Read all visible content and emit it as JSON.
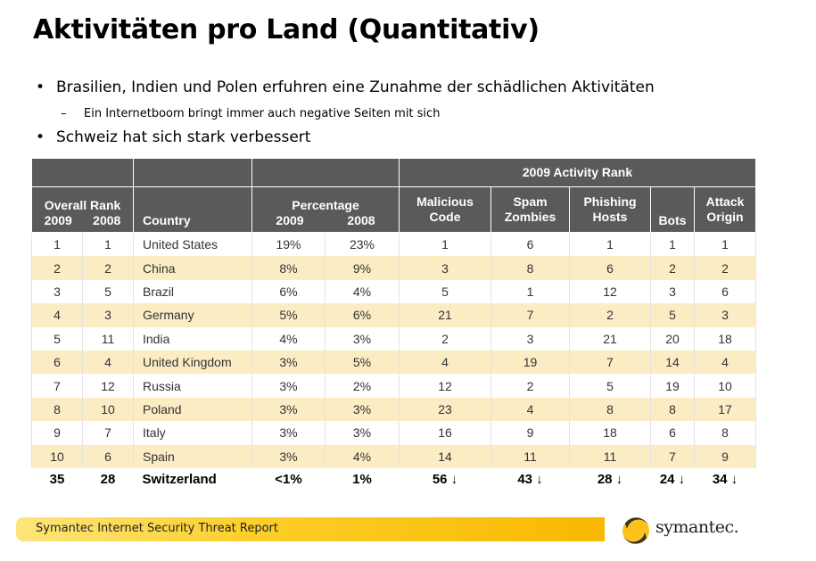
{
  "title": "Aktivitäten pro Land (Quantitativ)",
  "bullets": [
    {
      "marker": "•",
      "text": "Brasilien, Indien und Polen erfuhren eine Zunahme der schädlichen Aktivitäten"
    },
    {
      "marker": "–",
      "text": "Ein Internetboom bringt immer auch negative Seiten mit sich"
    },
    {
      "marker": "•",
      "text": "Schweiz hat sich stark verbessert"
    }
  ],
  "table": {
    "group_header": "2009 Activity Rank",
    "header": {
      "overall_rank": "Overall Rank",
      "y2009": "2009",
      "y2008": "2008",
      "country": "Country",
      "percentage": "Percentage",
      "p2009": "2009",
      "p2008": "2008",
      "malicious_code": "Malicious Code",
      "spam_zombies": "Spam Zombies",
      "phishing_hosts": "Phishing Hosts",
      "bots": "Bots",
      "attack_origin": "Attack Origin"
    },
    "rows": [
      [
        "1",
        "1",
        "United States",
        "19%",
        "23%",
        "1",
        "6",
        "1",
        "1",
        "1"
      ],
      [
        "2",
        "2",
        "China",
        "8%",
        "9%",
        "3",
        "8",
        "6",
        "2",
        "2"
      ],
      [
        "3",
        "5",
        "Brazil",
        "6%",
        "4%",
        "5",
        "1",
        "12",
        "3",
        "6"
      ],
      [
        "4",
        "3",
        "Germany",
        "5%",
        "6%",
        "21",
        "7",
        "2",
        "5",
        "3"
      ],
      [
        "5",
        "11",
        "India",
        "4%",
        "3%",
        "2",
        "3",
        "21",
        "20",
        "18"
      ],
      [
        "6",
        "4",
        "United Kingdom",
        "3%",
        "5%",
        "4",
        "19",
        "7",
        "14",
        "4"
      ],
      [
        "7",
        "12",
        "Russia",
        "3%",
        "2%",
        "12",
        "2",
        "5",
        "19",
        "10"
      ],
      [
        "8",
        "10",
        "Poland",
        "3%",
        "3%",
        "23",
        "4",
        "8",
        "8",
        "17"
      ],
      [
        "9",
        "7",
        "Italy",
        "3%",
        "3%",
        "16",
        "9",
        "18",
        "6",
        "8"
      ],
      [
        "10",
        "6",
        "Spain",
        "3%",
        "4%",
        "14",
        "11",
        "11",
        "7",
        "9"
      ]
    ],
    "switzerland": [
      "35",
      "28",
      "Switzerland",
      "<1%",
      "1%",
      "56 ↓",
      "43 ↓",
      "28 ↓",
      "24 ↓",
      "34 ↓"
    ]
  },
  "footer": {
    "report_title": "Symantec Internet Security Threat Report",
    "logo_text": "symantec.",
    "bar_colors": [
      "#fde57c",
      "#f9b800"
    ]
  }
}
